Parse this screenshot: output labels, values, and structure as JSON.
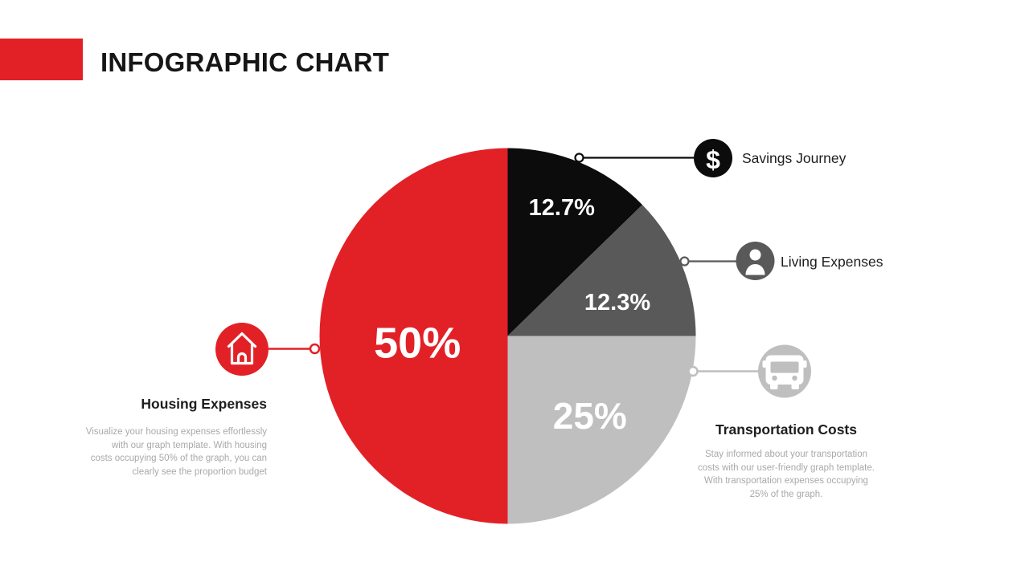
{
  "slide": {
    "title": "INFOGRAPHIC CHART"
  },
  "colors": {
    "accent_red": "#e22127",
    "slice_black": "#0c0c0c",
    "slice_dark_gray": "#595959",
    "slice_light_gray": "#bfbfbf",
    "heading_text": "#161616",
    "label_text": "#1e1e1e",
    "body_text": "#a9a9a9"
  },
  "chart_data": {
    "type": "pie",
    "title": "",
    "start_angle_deg": 0,
    "direction": "clockwise",
    "legend_position": "callouts",
    "segments": [
      {
        "label": "Savings Journey",
        "value": 12.7,
        "display": "12.7%",
        "color": "#0c0c0c"
      },
      {
        "label": "Living Expenses",
        "value": 12.3,
        "display": "12.3%",
        "color": "#595959"
      },
      {
        "label": "Transportation Costs",
        "value": 25,
        "display": "25%",
        "color": "#bfbfbf"
      },
      {
        "label": "Housing Expenses",
        "value": 50,
        "display": "50%",
        "color": "#e22127"
      }
    ]
  },
  "callouts": {
    "savings": {
      "label": "Savings Journey",
      "icon": "dollar-icon",
      "icon_glyph": "$"
    },
    "living": {
      "label": "Living Expenses",
      "icon": "person-icon"
    },
    "transportation": {
      "label": "Transportation Costs",
      "icon": "bus-icon",
      "description_lines": [
        "Stay informed about your transportation",
        "costs with our user-friendly graph template.",
        "With transportation expenses occupying",
        "25% of the graph."
      ]
    },
    "housing": {
      "label": "Housing Expenses",
      "icon": "home-icon",
      "description_lines": [
        "Visualize your housing expenses effortlessly",
        "with our graph template. With housing",
        "costs occupying 50% of the graph, you can",
        "clearly see the proportion budget"
      ]
    }
  }
}
